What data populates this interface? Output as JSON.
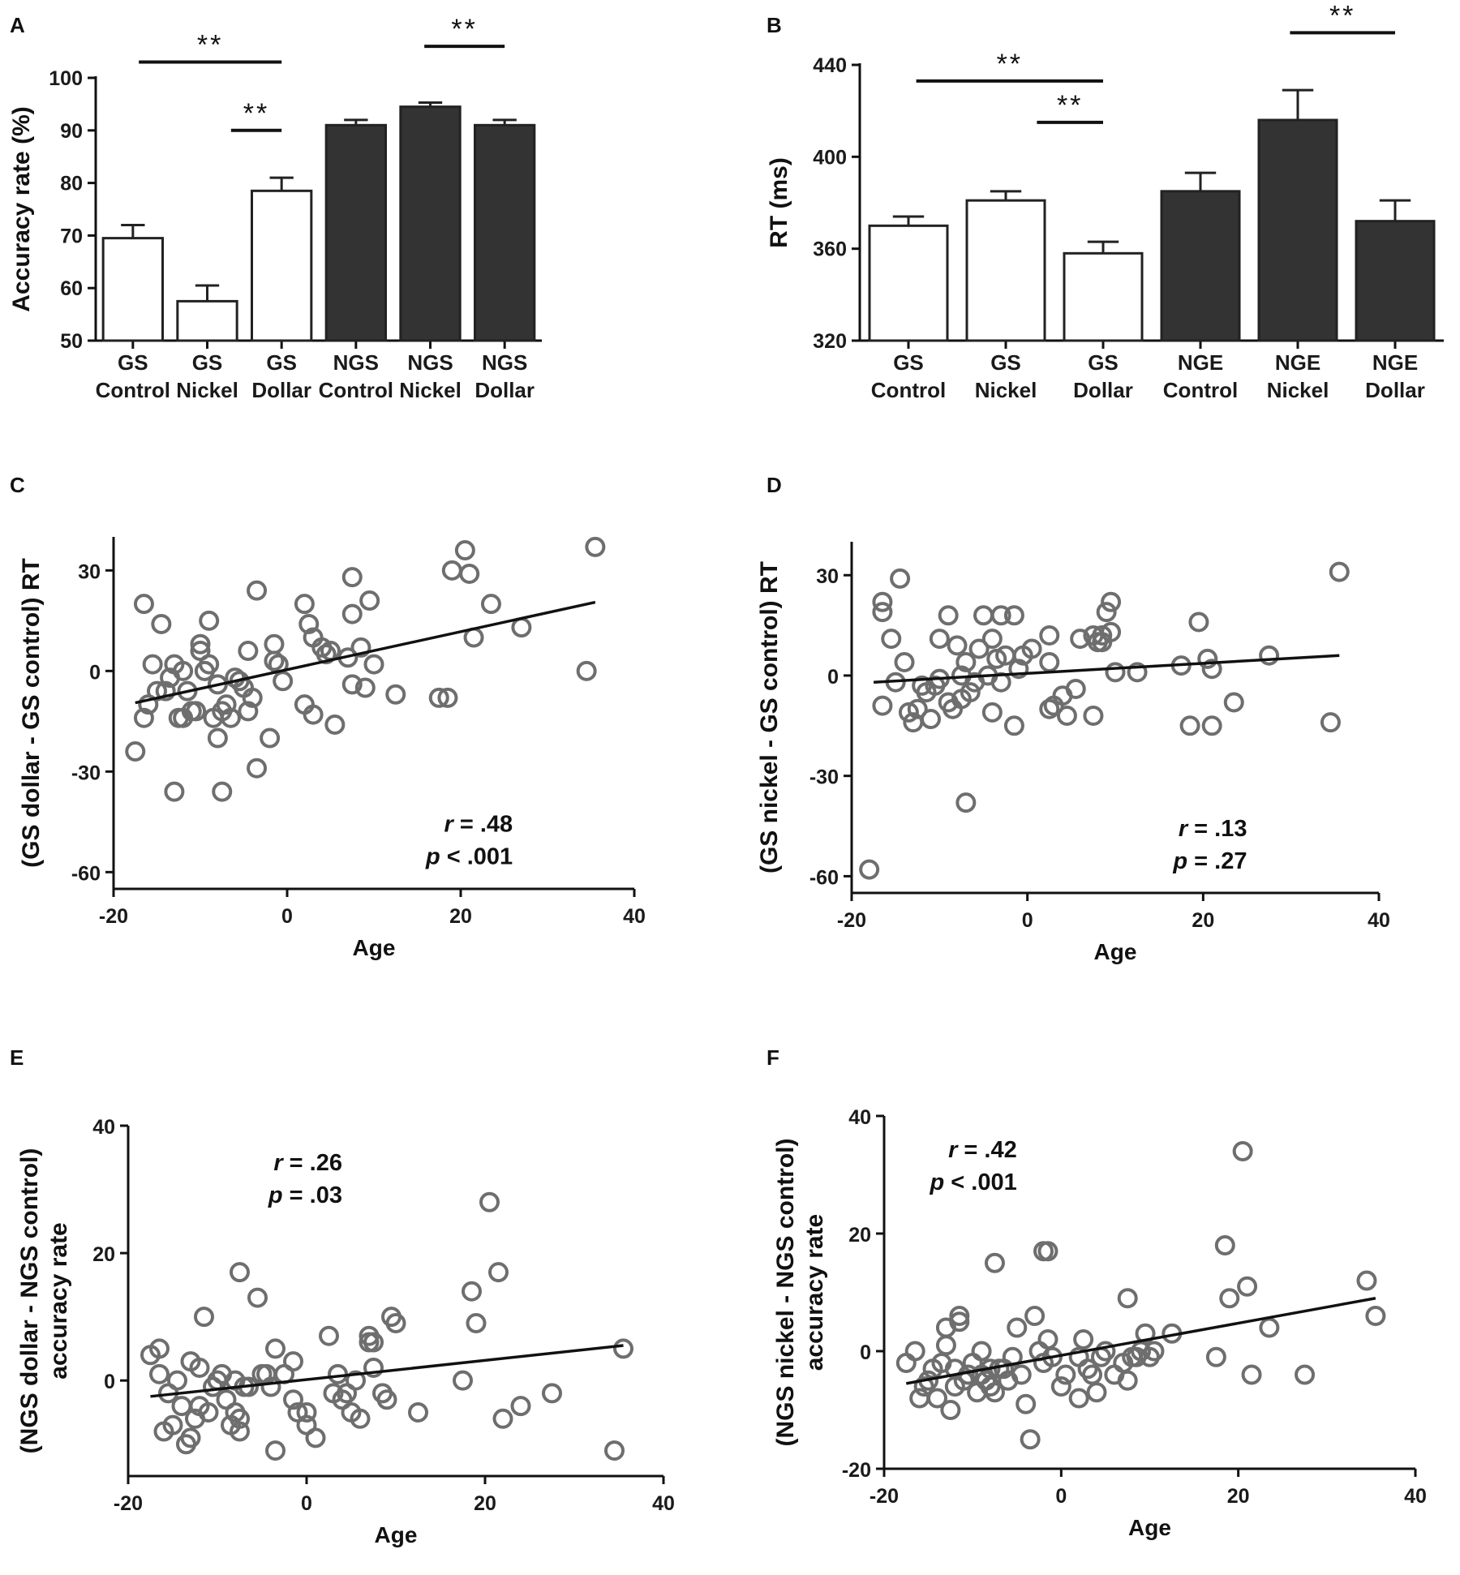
{
  "chart_data": [
    {
      "panel": "A",
      "type": "bar",
      "ylabel": "Accuracy rate (%)",
      "ylim": [
        50,
        100
      ],
      "yticks": [
        50,
        60,
        70,
        80,
        90,
        100
      ],
      "categories": [
        [
          "GS",
          "Control"
        ],
        [
          "GS",
          "Nickel"
        ],
        [
          "GS",
          "Dollar"
        ],
        [
          "NGS",
          "Control"
        ],
        [
          "NGS",
          "Nickel"
        ],
        [
          "NGS",
          "Dollar"
        ]
      ],
      "values": [
        69.5,
        57.5,
        78.5,
        91,
        94.5,
        91
      ],
      "errors": [
        2.5,
        3,
        2.5,
        1,
        0.8,
        1
      ],
      "fill": [
        "#ffffff",
        "#ffffff",
        "#ffffff",
        "#333333",
        "#333333",
        "#333333"
      ],
      "significance": [
        {
          "from": 0,
          "to": 2,
          "label": "**",
          "y": 103
        },
        {
          "from": 1,
          "to": 2,
          "label": "**",
          "y": 90
        },
        {
          "from": 4,
          "to": 5,
          "label": "**",
          "y": 106
        }
      ]
    },
    {
      "panel": "B",
      "type": "bar",
      "ylabel": "RT (ms)",
      "ylim": [
        320,
        440
      ],
      "yticks": [
        320,
        360,
        400,
        440
      ],
      "categories": [
        [
          "GS",
          "Control"
        ],
        [
          "GS",
          "Nickel"
        ],
        [
          "GS",
          "Dollar"
        ],
        [
          "NGE",
          "Control"
        ],
        [
          "NGE",
          "Nickel"
        ],
        [
          "NGE",
          "Dollar"
        ]
      ],
      "values": [
        370,
        381,
        358,
        385,
        416,
        372
      ],
      "errors": [
        4,
        4,
        5,
        8,
        13,
        9
      ],
      "fill": [
        "#ffffff",
        "#ffffff",
        "#ffffff",
        "#333333",
        "#333333",
        "#333333"
      ],
      "significance": [
        {
          "from": 0,
          "to": 2,
          "label": "**",
          "y": 433
        },
        {
          "from": 1,
          "to": 2,
          "label": "**",
          "y": 415
        },
        {
          "from": 4,
          "to": 5,
          "label": "**",
          "y": 454
        }
      ]
    },
    {
      "panel": "C",
      "type": "scatter",
      "ylabel": "(GS dollar - GS control) RT",
      "xlabel": "Age",
      "xlim": [
        -20,
        40
      ],
      "xticks": [
        -20,
        0,
        20,
        40
      ],
      "ylim": [
        -65,
        40
      ],
      "yticks": [
        -60,
        -30,
        0,
        30
      ],
      "annotation": {
        "r": ".48",
        "p": "< .001",
        "x": 26,
        "y": -48
      },
      "fit": {
        "x": [
          -17.5,
          35.5
        ],
        "y": [
          -9.5,
          20.5
        ]
      },
      "points": [
        [
          -17.5,
          -24
        ],
        [
          -16.5,
          20
        ],
        [
          -16.5,
          -14
        ],
        [
          -16,
          -10
        ],
        [
          -15.5,
          2
        ],
        [
          -15,
          -6
        ],
        [
          -14.5,
          14
        ],
        [
          -14,
          -6
        ],
        [
          -13.5,
          -2
        ],
        [
          -13,
          2
        ],
        [
          -13,
          -36
        ],
        [
          -12.5,
          -14
        ],
        [
          -12,
          -14
        ],
        [
          -12,
          0
        ],
        [
          -11.5,
          -6
        ],
        [
          -11,
          -12
        ],
        [
          -10.5,
          -12
        ],
        [
          -10,
          6
        ],
        [
          -10,
          8
        ],
        [
          -9.5,
          0
        ],
        [
          -9,
          2
        ],
        [
          -9,
          15
        ],
        [
          -8.5,
          -14
        ],
        [
          -8,
          -4
        ],
        [
          -8,
          -20
        ],
        [
          -7.5,
          -36
        ],
        [
          -7.5,
          -12
        ],
        [
          -7,
          -10
        ],
        [
          -6.5,
          -14
        ],
        [
          -6,
          -2
        ],
        [
          -5.5,
          -3
        ],
        [
          -5,
          -5
        ],
        [
          -4.5,
          6
        ],
        [
          -4.5,
          -12
        ],
        [
          -4,
          -8
        ],
        [
          -3.5,
          24
        ],
        [
          -3.5,
          -29
        ],
        [
          -2,
          -20
        ],
        [
          -1.5,
          8
        ],
        [
          -1.5,
          3
        ],
        [
          -1,
          2
        ],
        [
          -0.5,
          -3
        ],
        [
          2,
          20
        ],
        [
          2,
          -10
        ],
        [
          2.5,
          14
        ],
        [
          3,
          10
        ],
        [
          3,
          -13
        ],
        [
          4,
          7
        ],
        [
          4.5,
          5
        ],
        [
          5,
          6
        ],
        [
          5.5,
          -16
        ],
        [
          7,
          4
        ],
        [
          7.5,
          28
        ],
        [
          7.5,
          17
        ],
        [
          7.5,
          -4
        ],
        [
          8.5,
          7
        ],
        [
          9,
          -5
        ],
        [
          9.5,
          21
        ],
        [
          10,
          2
        ],
        [
          12.5,
          -7
        ],
        [
          17.5,
          -8
        ],
        [
          18.5,
          -8
        ],
        [
          19,
          30
        ],
        [
          20.5,
          36
        ],
        [
          21,
          29
        ],
        [
          21.5,
          10
        ],
        [
          23.5,
          20
        ],
        [
          27,
          13
        ],
        [
          34.5,
          0
        ],
        [
          35.5,
          37
        ]
      ]
    },
    {
      "panel": "D",
      "type": "scatter",
      "ylabel": "(GS nickel - GS control) RT",
      "xlabel": "Age",
      "xlim": [
        -20,
        40
      ],
      "xticks": [
        -20,
        0,
        20,
        40
      ],
      "ylim": [
        -65,
        40
      ],
      "yticks": [
        -60,
        -30,
        0,
        30
      ],
      "annotation": {
        "r": ".13",
        "p": "= .27",
        "x": 25,
        "y": -48
      },
      "fit": {
        "x": [
          -17.5,
          35.5
        ],
        "y": [
          -2,
          6
        ]
      },
      "points": [
        [
          -18,
          -58
        ],
        [
          -16.5,
          22
        ],
        [
          -16.5,
          19
        ],
        [
          -16.5,
          -9
        ],
        [
          -15.5,
          11
        ],
        [
          -15,
          -2
        ],
        [
          -14.5,
          29
        ],
        [
          -14,
          4
        ],
        [
          -13.5,
          -11
        ],
        [
          -13,
          -14
        ],
        [
          -12.5,
          -10
        ],
        [
          -12,
          -3
        ],
        [
          -11.5,
          -5
        ],
        [
          -11,
          -13
        ],
        [
          -10.5,
          -3
        ],
        [
          -10,
          11
        ],
        [
          -10,
          -1
        ],
        [
          -9,
          18
        ],
        [
          -9,
          -8
        ],
        [
          -8.5,
          -10
        ],
        [
          -8,
          9
        ],
        [
          -7.5,
          0
        ],
        [
          -7.5,
          -7
        ],
        [
          -7,
          4
        ],
        [
          -7,
          -38
        ],
        [
          -6.5,
          -5
        ],
        [
          -6,
          -2
        ],
        [
          -5.5,
          8
        ],
        [
          -5,
          18
        ],
        [
          -4.5,
          0
        ],
        [
          -4,
          11
        ],
        [
          -4,
          -11
        ],
        [
          -3.5,
          5
        ],
        [
          -3,
          18
        ],
        [
          -3,
          -2
        ],
        [
          -2.5,
          6
        ],
        [
          -1.5,
          18
        ],
        [
          -1.5,
          -15
        ],
        [
          -1,
          2
        ],
        [
          -0.5,
          6
        ],
        [
          0.5,
          8
        ],
        [
          2.5,
          4
        ],
        [
          2.5,
          12
        ],
        [
          2.5,
          -10
        ],
        [
          3,
          -9
        ],
        [
          4,
          -6
        ],
        [
          4.5,
          -12
        ],
        [
          5.5,
          -4
        ],
        [
          6,
          11
        ],
        [
          7.5,
          12
        ],
        [
          7.5,
          -12
        ],
        [
          8,
          10
        ],
        [
          8.5,
          10
        ],
        [
          8.5,
          12
        ],
        [
          9,
          19
        ],
        [
          9.5,
          22
        ],
        [
          9.5,
          13
        ],
        [
          10,
          1
        ],
        [
          12.5,
          1
        ],
        [
          17.5,
          3
        ],
        [
          18.5,
          -15
        ],
        [
          19.5,
          16
        ],
        [
          20.5,
          5
        ],
        [
          21,
          2
        ],
        [
          21,
          -15
        ],
        [
          23.5,
          -8
        ],
        [
          27.5,
          6
        ],
        [
          34.5,
          -14
        ],
        [
          35.5,
          31
        ]
      ]
    },
    {
      "panel": "E",
      "type": "scatter",
      "ylabel": [
        "(NGS dollar - NGS control)",
        "accuracy rate"
      ],
      "xlabel": "Age",
      "xlim": [
        -20,
        40
      ],
      "xticks": [
        -20,
        0,
        20,
        40
      ],
      "ylim": [
        -15,
        40
      ],
      "yticks": [
        0,
        20,
        40
      ],
      "annotation": {
        "r": ".26",
        "p": "= .03",
        "x": 4,
        "y": 33
      },
      "fit": {
        "x": [
          -17.5,
          35.5
        ],
        "y": [
          -2.5,
          5.5
        ]
      },
      "points": [
        [
          -17.5,
          4
        ],
        [
          -16.5,
          5
        ],
        [
          -16.5,
          1
        ],
        [
          -16,
          -8
        ],
        [
          -15.5,
          -2
        ],
        [
          -15,
          -7
        ],
        [
          -14.5,
          0
        ],
        [
          -14,
          -4
        ],
        [
          -13.5,
          -10
        ],
        [
          -13,
          3
        ],
        [
          -13,
          -9
        ],
        [
          -12.5,
          -6
        ],
        [
          -12,
          2
        ],
        [
          -12,
          -4
        ],
        [
          -11.5,
          10
        ],
        [
          -11,
          -5
        ],
        [
          -10.5,
          -1
        ],
        [
          -10,
          0
        ],
        [
          -9.5,
          1
        ],
        [
          -9,
          -3
        ],
        [
          -8.5,
          -7
        ],
        [
          -8,
          -5
        ],
        [
          -8,
          0
        ],
        [
          -7.5,
          -6
        ],
        [
          -7.5,
          -8
        ],
        [
          -7.5,
          17
        ],
        [
          -7,
          -1
        ],
        [
          -6.5,
          -1
        ],
        [
          -5.5,
          13
        ],
        [
          -5,
          1
        ],
        [
          -4.5,
          1
        ],
        [
          -4,
          -1
        ],
        [
          -3.5,
          5
        ],
        [
          -3.5,
          -11
        ],
        [
          -2.5,
          1
        ],
        [
          -1.5,
          3
        ],
        [
          -1.5,
          -3
        ],
        [
          -1,
          -5
        ],
        [
          0,
          -7
        ],
        [
          0,
          -5
        ],
        [
          1,
          -9
        ],
        [
          2.5,
          7
        ],
        [
          3,
          -2
        ],
        [
          3.5,
          1
        ],
        [
          4,
          -3
        ],
        [
          4.5,
          -2
        ],
        [
          5,
          -5
        ],
        [
          5.5,
          0
        ],
        [
          6,
          -6
        ],
        [
          7,
          6
        ],
        [
          7,
          7
        ],
        [
          7.5,
          6
        ],
        [
          7.5,
          2
        ],
        [
          8.5,
          -2
        ],
        [
          9,
          -3
        ],
        [
          9.5,
          10
        ],
        [
          10,
          9
        ],
        [
          12.5,
          -5
        ],
        [
          17.5,
          0
        ],
        [
          18.5,
          14
        ],
        [
          19,
          9
        ],
        [
          20.5,
          28
        ],
        [
          21.5,
          17
        ],
        [
          22,
          -6
        ],
        [
          24,
          -4
        ],
        [
          27.5,
          -2
        ],
        [
          34.5,
          -11
        ],
        [
          35.5,
          5
        ]
      ]
    },
    {
      "panel": "F",
      "type": "scatter",
      "ylabel": [
        "(NGS nickel - NGS control)",
        "accuracy rate"
      ],
      "xlabel": "Age",
      "xlim": [
        -20,
        40
      ],
      "xticks": [
        -20,
        0,
        20,
        40
      ],
      "ylim": [
        -20,
        40
      ],
      "yticks": [
        -20,
        0,
        20,
        40
      ],
      "annotation": {
        "r": ".42",
        "p": "< .001",
        "x": -5,
        "y": 33
      },
      "fit": {
        "x": [
          -17.5,
          35.5
        ],
        "y": [
          -5.5,
          9
        ]
      },
      "points": [
        [
          -17.5,
          -2
        ],
        [
          -16.5,
          0
        ],
        [
          -16,
          -8
        ],
        [
          -15.5,
          -6
        ],
        [
          -15,
          -5
        ],
        [
          -14.5,
          -3
        ],
        [
          -14,
          -8
        ],
        [
          -13.5,
          -2
        ],
        [
          -13,
          1
        ],
        [
          -13,
          4
        ],
        [
          -12.5,
          -10
        ],
        [
          -12,
          -6
        ],
        [
          -12,
          -3
        ],
        [
          -11.5,
          5
        ],
        [
          -11.5,
          6
        ],
        [
          -11,
          -5
        ],
        [
          -10.5,
          -4
        ],
        [
          -10,
          -2
        ],
        [
          -9.5,
          -7
        ],
        [
          -9,
          -4
        ],
        [
          -9,
          0
        ],
        [
          -8.5,
          -5
        ],
        [
          -8,
          -6
        ],
        [
          -8,
          -3
        ],
        [
          -7.5,
          15
        ],
        [
          -7.5,
          -7
        ],
        [
          -7,
          -3
        ],
        [
          -6.5,
          -3
        ],
        [
          -6,
          -5
        ],
        [
          -5.5,
          -1
        ],
        [
          -5,
          4
        ],
        [
          -4.5,
          -4
        ],
        [
          -4,
          -9
        ],
        [
          -3.5,
          -15
        ],
        [
          -3,
          6
        ],
        [
          -2.5,
          0
        ],
        [
          -2,
          -2
        ],
        [
          -2,
          17
        ],
        [
          -1.5,
          17
        ],
        [
          -1.5,
          2
        ],
        [
          -1,
          -1
        ],
        [
          0,
          -6
        ],
        [
          0.5,
          -4
        ],
        [
          2,
          -1
        ],
        [
          2,
          -8
        ],
        [
          2.5,
          2
        ],
        [
          3,
          -3
        ],
        [
          3.5,
          -4
        ],
        [
          4,
          -7
        ],
        [
          4.5,
          -1
        ],
        [
          5,
          0
        ],
        [
          6,
          -4
        ],
        [
          7,
          -2
        ],
        [
          7.5,
          -5
        ],
        [
          7.5,
          9
        ],
        [
          8,
          -1
        ],
        [
          8.5,
          -1
        ],
        [
          9,
          0
        ],
        [
          9.5,
          3
        ],
        [
          10,
          -1
        ],
        [
          10.5,
          0
        ],
        [
          12.5,
          3
        ],
        [
          17.5,
          -1
        ],
        [
          18.5,
          18
        ],
        [
          19,
          9
        ],
        [
          20.5,
          34
        ],
        [
          21,
          11
        ],
        [
          21.5,
          -4
        ],
        [
          23.5,
          4
        ],
        [
          27.5,
          -4
        ],
        [
          34.5,
          12
        ],
        [
          35.5,
          6
        ]
      ]
    }
  ],
  "panels": [
    "A",
    "B",
    "C",
    "D",
    "E",
    "F"
  ],
  "annotation_labels": {
    "r": "r",
    "p": "p"
  }
}
